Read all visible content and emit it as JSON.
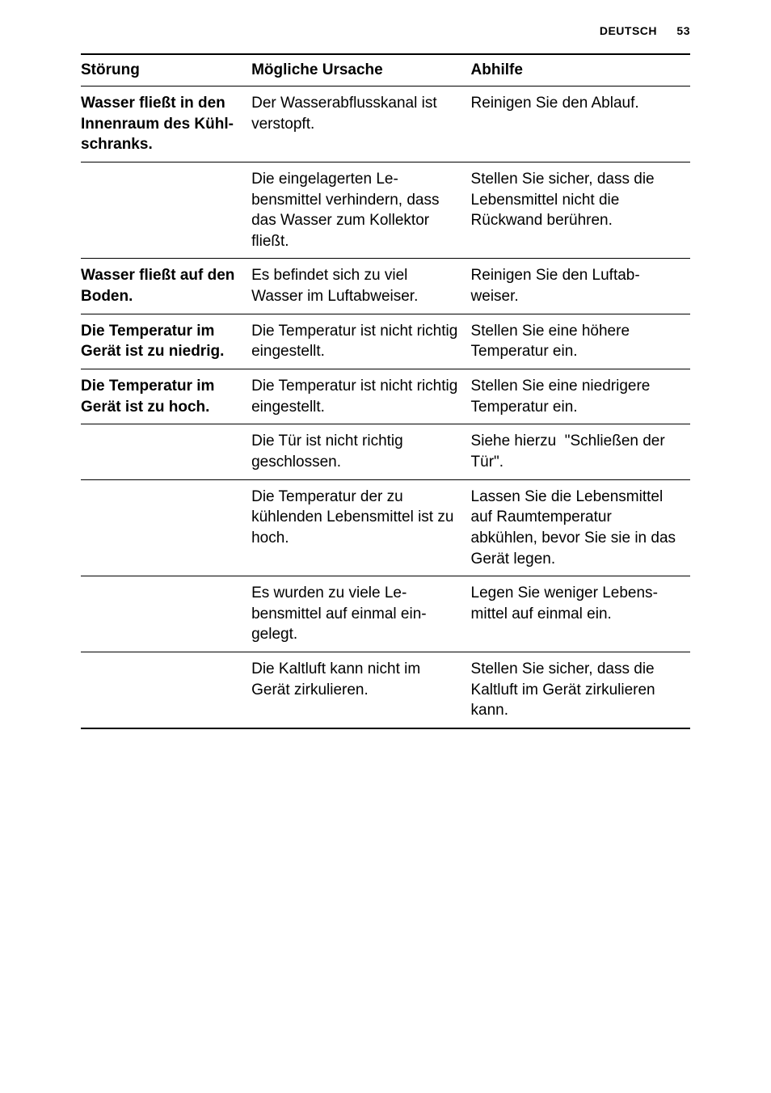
{
  "header": {
    "language": "DEUTSCH",
    "page_number": "53"
  },
  "table": {
    "headers": {
      "fault": "Störung",
      "cause": "Mögliche Ursache",
      "remedy": "Abhilfe"
    },
    "rows": [
      {
        "fault": "Wasser fließt in den Innenraum des Kühl­schranks.",
        "cause": "Der Wasserabflusskanal ist verstopft.",
        "remedy": "Reinigen Sie den Ablauf."
      },
      {
        "fault": "",
        "cause": "Die eingelagerten Le­bensmittel verhindern, dass das Wasser zum Kol­lektor fließt.",
        "remedy": "Stellen Sie sicher, dass die Lebensmittel nicht die Rückwand berühren."
      },
      {
        "fault": "Wasser fließt auf den Boden.",
        "cause": "Es befindet sich zu viel Wasser im Luftabweiser.",
        "remedy": "Reinigen Sie den Luftab­weiser."
      },
      {
        "fault": "Die Temperatur im Gerät ist zu niedrig.",
        "cause": "Die Temperatur ist nicht richtig eingestellt.",
        "remedy": "Stellen Sie eine höhere Temperatur ein."
      },
      {
        "fault": "Die Temperatur im Gerät ist zu hoch.",
        "cause": "Die Temperatur ist nicht richtig eingestellt.",
        "remedy": "Stellen Sie eine niedrigere Temperatur ein."
      },
      {
        "fault": "",
        "cause": "Die Tür ist nicht richtig geschlossen.",
        "remedy": "Siehe hierzu  \"Schließen der Tür\"."
      },
      {
        "fault": "",
        "cause": "Die Temperatur der zu kühlenden Lebensmittel ist zu hoch.",
        "remedy": "Lassen Sie die Lebensmit­tel auf Raumtemperatur abkühlen, bevor Sie sie in das Gerät legen."
      },
      {
        "fault": "",
        "cause": "Es wurden zu viele Le­bensmittel auf einmal ein­gelegt.",
        "remedy": "Legen Sie weniger Lebens­mittel auf einmal ein."
      },
      {
        "fault": "",
        "cause": "Die Kaltluft kann nicht im Gerät zirkulieren.",
        "remedy": "Stellen Sie sicher, dass die Kaltluft im Gerät zirkulieren kann."
      }
    ]
  }
}
